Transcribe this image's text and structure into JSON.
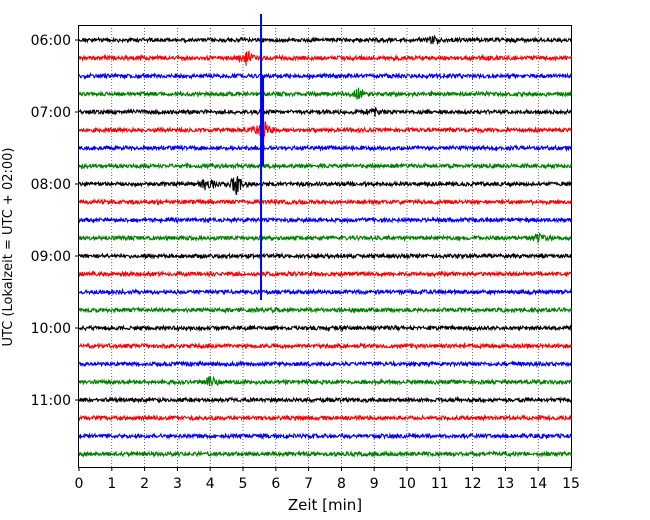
{
  "chart_data": {
    "type": "line",
    "title": "",
    "xlabel": "Zeit  [min]",
    "ylabel": "UTC (Lokalzeit = UTC + 02:00)",
    "xlim": [
      0,
      15
    ],
    "x_ticks": [
      0,
      1,
      2,
      3,
      4,
      5,
      6,
      7,
      8,
      9,
      10,
      11,
      12,
      13,
      14,
      15
    ],
    "y_tick_labels": [
      "06:00",
      "07:00",
      "08:00",
      "09:00",
      "10:00",
      "11:00"
    ],
    "grid": "vertical dotted lines at each minute",
    "trace_interval_min": 15,
    "trace_count": 24,
    "trace_colors": [
      "#000000",
      "#ff0000",
      "#0000ff",
      "#008000"
    ],
    "start_time": "06:00",
    "events": [
      {
        "trace_start": "06:15",
        "time_min": 5.1,
        "amplitude": 9,
        "color": "#ff0000"
      },
      {
        "trace_start": "07:15",
        "time_min": 5.6,
        "amplitude": 14,
        "color": "#0000ff",
        "note": "main quake arrival, large vertical spike spanning many traces"
      },
      {
        "trace_start": "08:00",
        "time_min": 4.8,
        "amplitude": 11,
        "color": "#000000"
      },
      {
        "trace_start": "08:00",
        "time_min": 3.9,
        "amplitude": 7,
        "color": "#000000"
      },
      {
        "trace_start": "06:45",
        "time_min": 8.5,
        "amplitude": 5,
        "color": "#008000"
      },
      {
        "trace_start": "07:00",
        "time_min": 9.0,
        "amplitude": 4,
        "color": "#000000"
      },
      {
        "trace_start": "08:45",
        "time_min": 14.0,
        "amplitude": 5,
        "color": "#008000"
      },
      {
        "trace_start": "10:45",
        "time_min": 4.0,
        "amplitude": 5,
        "color": "#008000"
      },
      {
        "trace_start": "06:00",
        "time_min": 10.8,
        "amplitude": 4,
        "color": "#000000"
      }
    ],
    "main_spike": {
      "time_min": 5.55,
      "from": "05:45",
      "to": "09:30",
      "color": "#0000ff"
    }
  }
}
